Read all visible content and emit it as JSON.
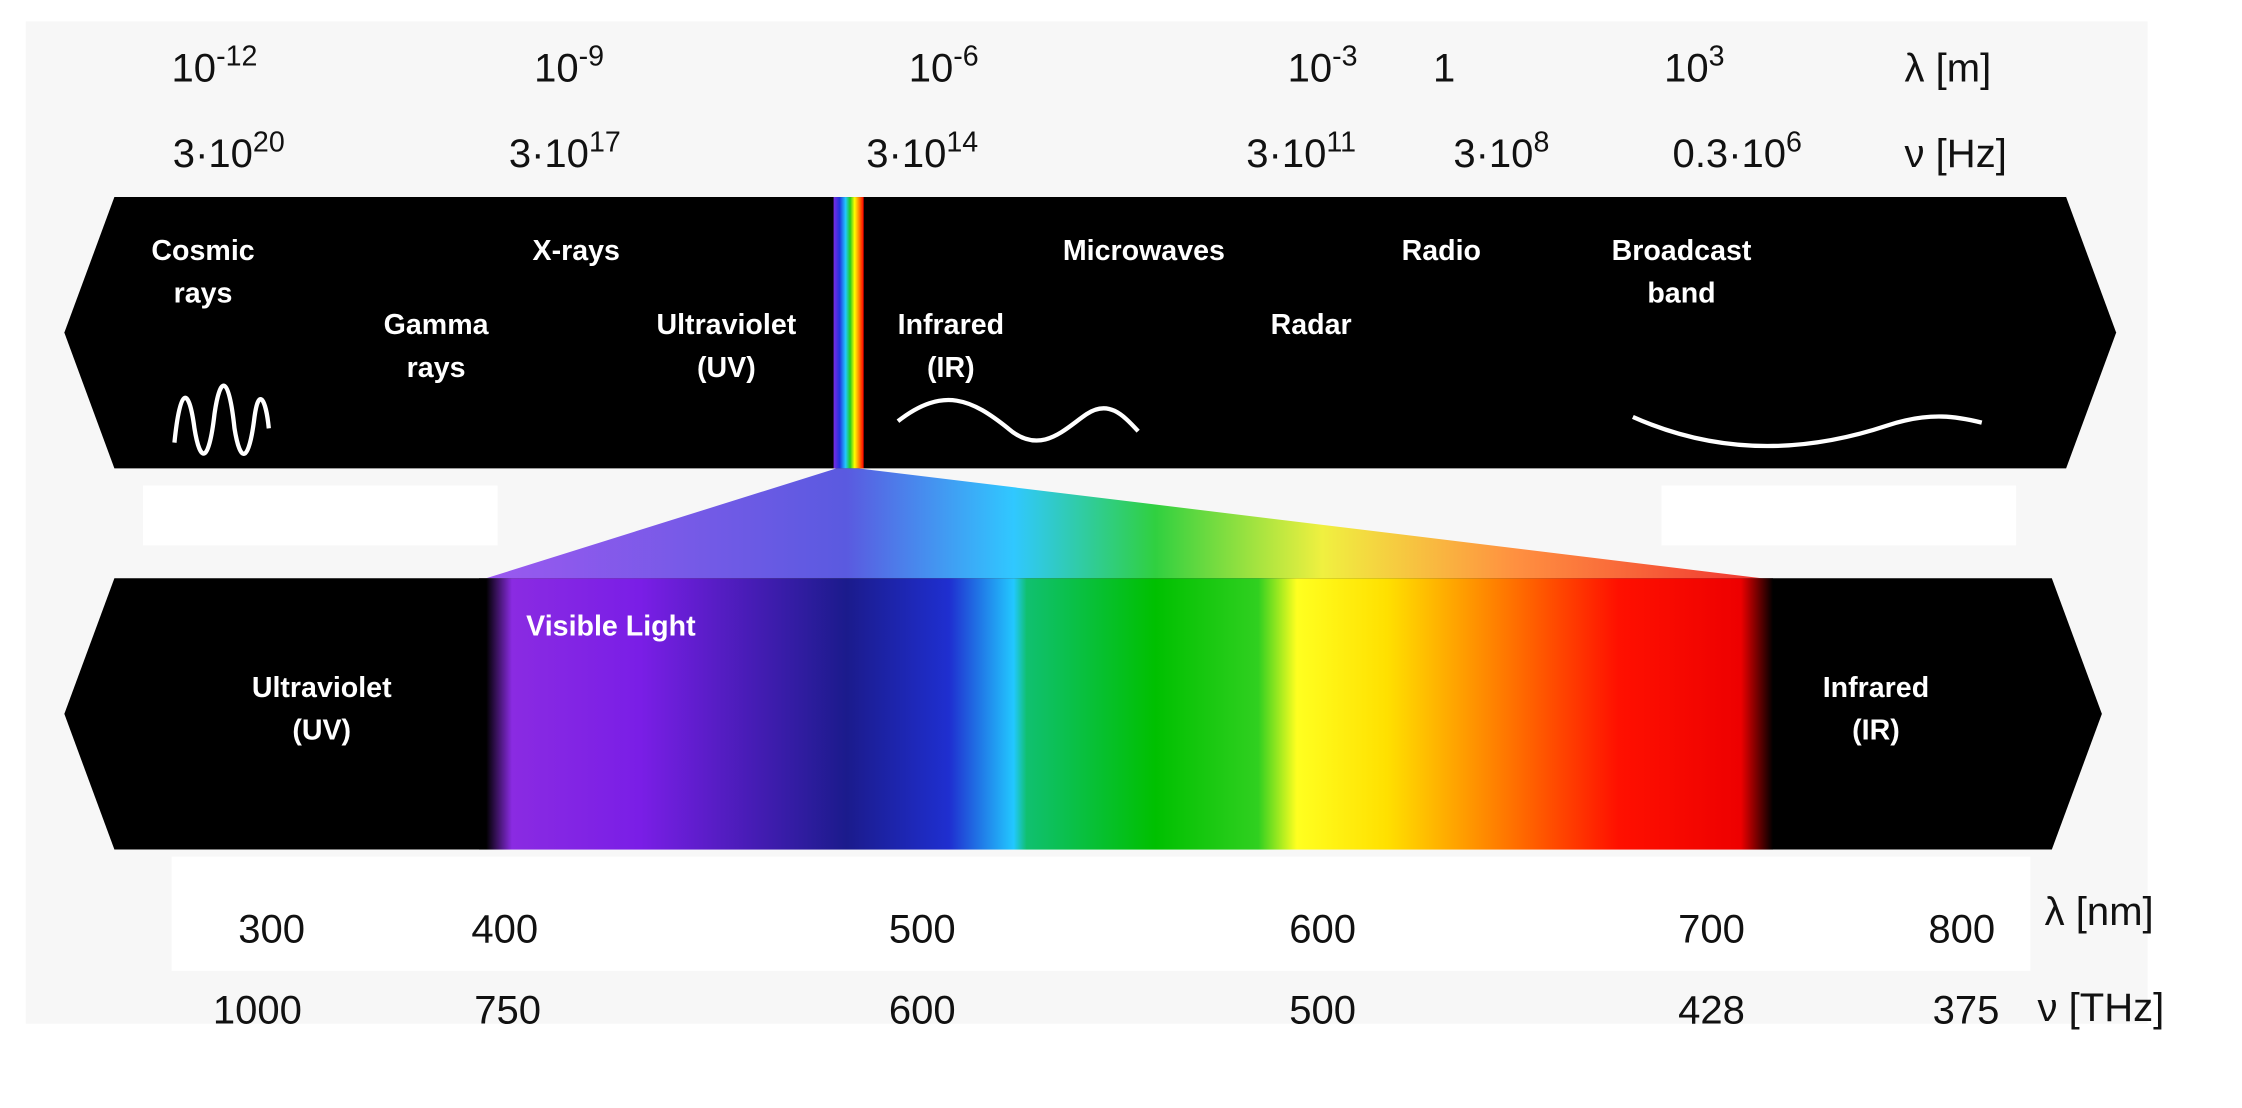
{
  "top_scale": {
    "wavelength_unit": "λ [m]",
    "wavelengths": [
      {
        "base": "10",
        "exp": "-12"
      },
      {
        "base": "10",
        "exp": "-9"
      },
      {
        "base": "10",
        "exp": "-6"
      },
      {
        "base": "10",
        "exp": "-3"
      },
      {
        "base": "1"
      },
      {
        "base": "10",
        "exp": "3"
      }
    ],
    "frequency_unit": "ν [Hz]",
    "frequencies": [
      {
        "base": "3·10",
        "exp": "20"
      },
      {
        "base": "3·10",
        "exp": "17"
      },
      {
        "base": "3·10",
        "exp": "14"
      },
      {
        "base": "3·10",
        "exp": "11"
      },
      {
        "base": "3·10",
        "exp": "8"
      },
      {
        "base": "0.3·10",
        "exp": "6"
      }
    ]
  },
  "spectrum_bands": [
    {
      "label": [
        "Cosmic",
        "rays"
      ]
    },
    {
      "label": [
        "X-rays"
      ]
    },
    {
      "label": [
        "Gamma",
        "rays"
      ]
    },
    {
      "label": [
        "Ultraviolet",
        "(UV)"
      ]
    },
    {
      "label": [
        "Infrared",
        "(IR)"
      ]
    },
    {
      "label": [
        "Microwaves"
      ]
    },
    {
      "label": [
        "Radar"
      ]
    },
    {
      "label": [
        "Radio"
      ]
    },
    {
      "label": [
        "Broadcast",
        "band"
      ]
    }
  ],
  "visible_detail": {
    "label": "Visible Light",
    "left_band": [
      "Ultraviolet",
      "(UV)"
    ],
    "right_band": [
      "Infrared",
      "(IR)"
    ]
  },
  "bottom_scale": {
    "wavelength_unit": "λ [nm]",
    "wavelengths": [
      300,
      400,
      500,
      600,
      700,
      800
    ],
    "frequency_unit": "ν [THz]",
    "frequencies": [
      1000,
      750,
      600,
      500,
      428,
      375
    ]
  }
}
